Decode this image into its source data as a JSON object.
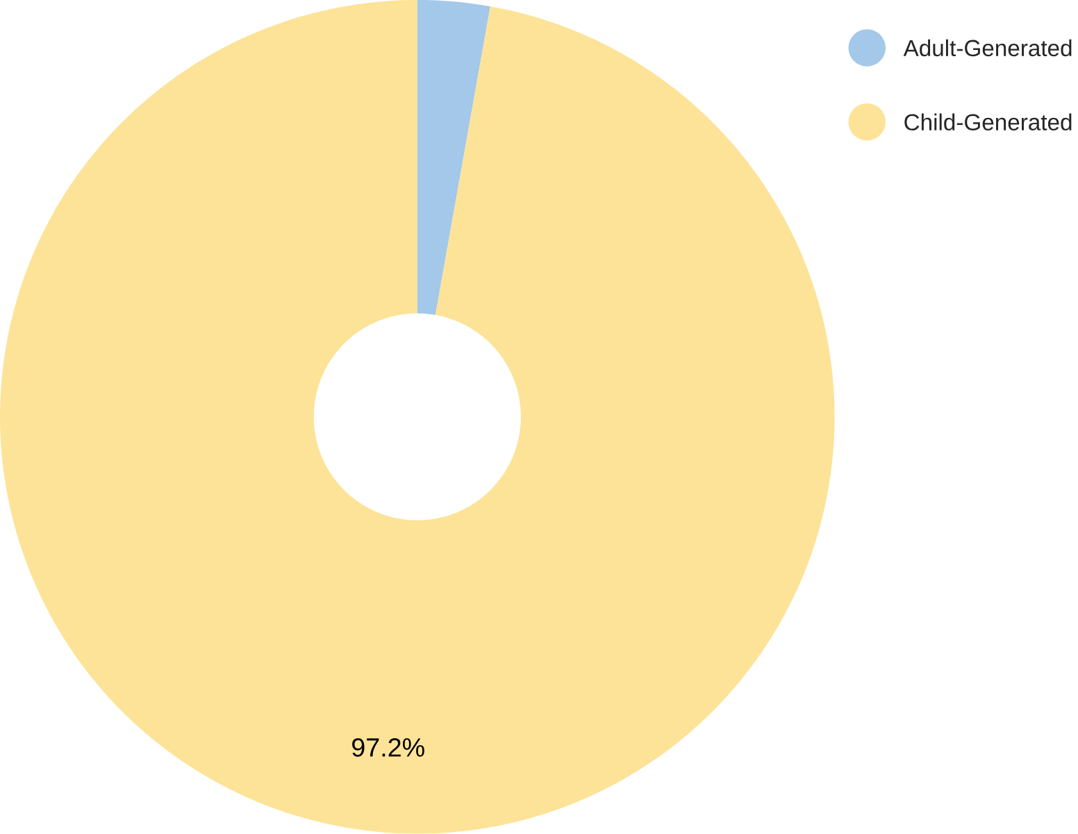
{
  "chart_data": {
    "type": "donut",
    "categories": [
      "Adult-Generated",
      "Child-Generated"
    ],
    "values": [
      2.8,
      97.2
    ],
    "colors": [
      "#a3c8ea",
      "#fde398"
    ],
    "value_labels": [
      null,
      "97.2%"
    ],
    "legend": "top right"
  }
}
